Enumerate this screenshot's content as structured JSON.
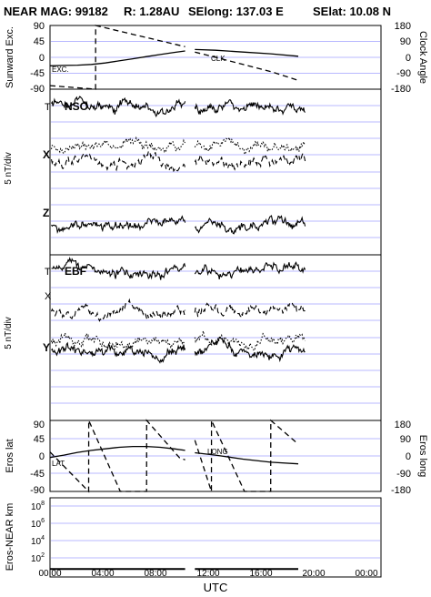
{
  "header": {
    "title": "NEAR MAG: 99182",
    "range": "R: 1.28AU",
    "selong": "SElong: 137.03 E",
    "selat": "SElat: 10.08 N"
  },
  "x_axis": {
    "label": "UTC",
    "ticks": [
      "00:00",
      "04:00",
      "08:00",
      "12:00",
      "16:00",
      "20:00",
      "00:00"
    ],
    "range_hours": [
      0,
      24
    ]
  },
  "colors": {
    "grid": "#b8b8ff",
    "line": "#000000",
    "frame": "#000000"
  },
  "chart_data": [
    {
      "type": "line",
      "panel": "sunward-excursion-and-clock-angle",
      "ylabel_left": "Sunward Exc.",
      "ylabel_right": "Clock Angle",
      "left_ticks": [
        "90",
        "45",
        "0",
        "-45",
        "-90"
      ],
      "right_ticks": [
        "180",
        "90",
        "0",
        "-90",
        "-180"
      ],
      "ylim_left": [
        -90,
        90
      ],
      "ylim_right": [
        -180,
        180
      ],
      "grid": true,
      "series": [
        {
          "name": "EXC.",
          "axis": "left",
          "style": "solid",
          "x": [
            0,
            1,
            2,
            3,
            4,
            5,
            6,
            7,
            8,
            9,
            9.8,
            "gap",
            10.5,
            12,
            14,
            16,
            18
          ],
          "y": [
            -24,
            -23,
            -22,
            -20,
            -16,
            -10,
            -4,
            2,
            8,
            14,
            18,
            null,
            22,
            20,
            15,
            10,
            3
          ]
        },
        {
          "name": "CLK",
          "axis": "right",
          "style": "dashed",
          "x": [
            0,
            3.3,
            3.31,
            6,
            9.8,
            "gap",
            10.5,
            12,
            14,
            16,
            18
          ],
          "y": [
            -160,
            -180,
            180,
            130,
            60,
            null,
            30,
            0,
            -40,
            -80,
            -130
          ]
        }
      ]
    },
    {
      "type": "line",
      "panel": "field-nso",
      "label": "NSO",
      "ylabel": "5 nT/div",
      "trace_labels": [
        "T",
        "X",
        "Z"
      ],
      "traces": [
        {
          "name": "T",
          "style": "solid",
          "level": 9.0,
          "pattern": "noisy-rising"
        },
        {
          "name": "X",
          "style": "dashed",
          "level": 5.6,
          "pattern": "noisy"
        },
        {
          "name": "Y",
          "style": "dotted",
          "level": 6.4,
          "pattern": "noisy"
        },
        {
          "name": "Z",
          "style": "solid",
          "level": 1.8,
          "pattern": "noisy"
        }
      ],
      "grid": true
    },
    {
      "type": "line",
      "panel": "field-ebf",
      "label": "EBF",
      "ylabel": "5 nT/div",
      "trace_labels": [
        "T",
        "X",
        "Y"
      ],
      "traces": [
        {
          "name": "T",
          "style": "solid",
          "level": 9.0,
          "pattern": "noisy-rising"
        },
        {
          "name": "X",
          "style": "dashed",
          "level": 6.6,
          "pattern": "noisy"
        },
        {
          "name": "Y-dotted",
          "style": "dotted",
          "level": 4.8,
          "pattern": "noisy"
        },
        {
          "name": "Y",
          "style": "solid",
          "level": 4.2,
          "pattern": "noisy"
        }
      ],
      "grid": true
    },
    {
      "type": "line",
      "panel": "eros-lat-long",
      "ylabel_left": "Eros lat",
      "ylabel_right": "Eros long",
      "left_ticks": [
        "90",
        "45",
        "0",
        "-45",
        "-90"
      ],
      "right_ticks": [
        "180",
        "90",
        "0",
        "-90",
        "-180"
      ],
      "ylim_left": [
        -90,
        90
      ],
      "ylim_right": [
        -180,
        180
      ],
      "series": [
        {
          "name": "LAT",
          "axis": "left",
          "style": "solid",
          "x": [
            0,
            1,
            2,
            3,
            4,
            5,
            6,
            7,
            8,
            9,
            9.8,
            "gap",
            10.5,
            12,
            14,
            16,
            18
          ],
          "y": [
            -4,
            2,
            9,
            14,
            18,
            22,
            24,
            24,
            22,
            18,
            14,
            null,
            8,
            2,
            -8,
            -16,
            -20
          ]
        },
        {
          "name": "LONG",
          "axis": "right",
          "style": "dashed",
          "x": [
            0,
            2.8,
            2.81,
            5.1,
            7.0,
            7.01,
            9.4,
            9.8,
            "gap",
            10.5,
            11.7,
            11.71,
            14.1,
            16.0,
            16.01,
            18
          ],
          "y": [
            20,
            -180,
            180,
            -180,
            -180,
            180,
            -10,
            -20,
            null,
            80,
            -180,
            180,
            -180,
            -180,
            180,
            60
          ]
        }
      ]
    },
    {
      "type": "line",
      "panel": "eros-near-distance",
      "ylabel": "Eros-NEAR km",
      "yscale": "log",
      "yticks": [
        "10^2",
        "10^4",
        "10^6",
        "10^8"
      ],
      "ylim": [
        10,
        100000000
      ],
      "series": [
        {
          "name": "distance",
          "style": "solid",
          "x": [
            0,
            9.8,
            "gap",
            10.5,
            18
          ],
          "y": [
            50,
            50,
            null,
            50,
            50
          ]
        }
      ]
    }
  ]
}
